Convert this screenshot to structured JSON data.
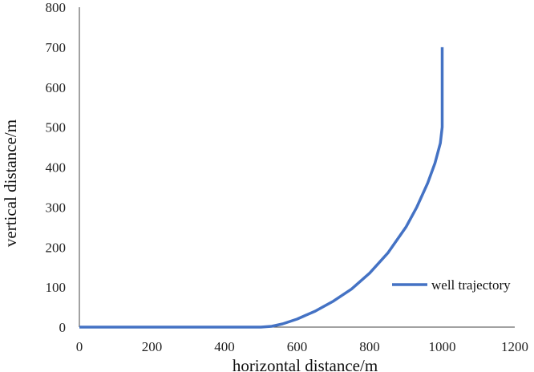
{
  "chart_data": {
    "type": "line",
    "title": "",
    "xlabel": "horizontal distance/m",
    "ylabel": "vertical distance/m",
    "xlim": [
      0,
      1200
    ],
    "ylim": [
      0,
      800
    ],
    "xticks": [
      0,
      200,
      400,
      600,
      800,
      1000,
      1200
    ],
    "yticks": [
      0,
      100,
      200,
      300,
      400,
      500,
      600,
      700,
      800
    ],
    "grid": false,
    "legend_position": "right",
    "series": [
      {
        "name": "well trajectory",
        "color": "#4472C4",
        "x": [
          0,
          200,
          400,
          500,
          530,
          560,
          600,
          650,
          700,
          750,
          800,
          850,
          900,
          930,
          960,
          980,
          995,
          1000,
          1000,
          1000
        ],
        "y": [
          0,
          0,
          0,
          0,
          2,
          8,
          20,
          40,
          65,
          95,
          135,
          185,
          250,
          300,
          360,
          410,
          460,
          500,
          600,
          700
        ]
      }
    ]
  }
}
